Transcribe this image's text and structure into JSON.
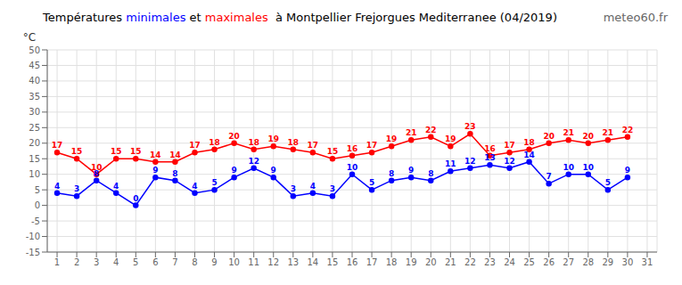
{
  "chart_data": {
    "type": "line",
    "title": "Températures minimales et maximales  à Montpellier Frejorgues Mediterranee (04/2019)",
    "annotations": [
      "meteo60.fr"
    ],
    "y_label": "°C",
    "x": [
      1,
      2,
      3,
      4,
      5,
      6,
      7,
      8,
      9,
      10,
      11,
      12,
      13,
      14,
      15,
      16,
      17,
      18,
      19,
      20,
      21,
      22,
      23,
      24,
      25,
      26,
      27,
      28,
      29,
      30,
      31
    ],
    "series": [
      {
        "name": "minimales",
        "color": "#0000ff",
        "values": [
          4,
          3,
          8,
          4,
          0,
          9,
          8,
          4,
          5,
          9,
          12,
          9,
          3,
          4,
          3,
          10,
          5,
          8,
          9,
          8,
          11,
          12,
          13,
          12,
          14,
          7,
          10,
          10,
          5,
          9,
          null
        ]
      },
      {
        "name": "maximales",
        "color": "#ff0000",
        "values": [
          17,
          15,
          10,
          15,
          15,
          14,
          14,
          17,
          18,
          20,
          18,
          19,
          18,
          17,
          15,
          16,
          17,
          19,
          21,
          22,
          19,
          23,
          16,
          17,
          18,
          20,
          21,
          20,
          21,
          22,
          null
        ]
      }
    ],
    "xlim": [
      0.5,
      31.5
    ],
    "xticks": [
      1,
      2,
      3,
      4,
      5,
      6,
      7,
      8,
      9,
      10,
      11,
      12,
      13,
      14,
      15,
      16,
      17,
      18,
      19,
      20,
      21,
      22,
      23,
      24,
      25,
      26,
      27,
      28,
      29,
      30,
      31
    ],
    "ylim": [
      -15,
      50
    ],
    "yticks": [
      -15,
      -10,
      -5,
      0,
      5,
      10,
      15,
      20,
      25,
      30,
      35,
      40,
      45,
      50
    ],
    "grid": true,
    "data_labels": true,
    "marker": "circle",
    "line_style": "solid"
  }
}
